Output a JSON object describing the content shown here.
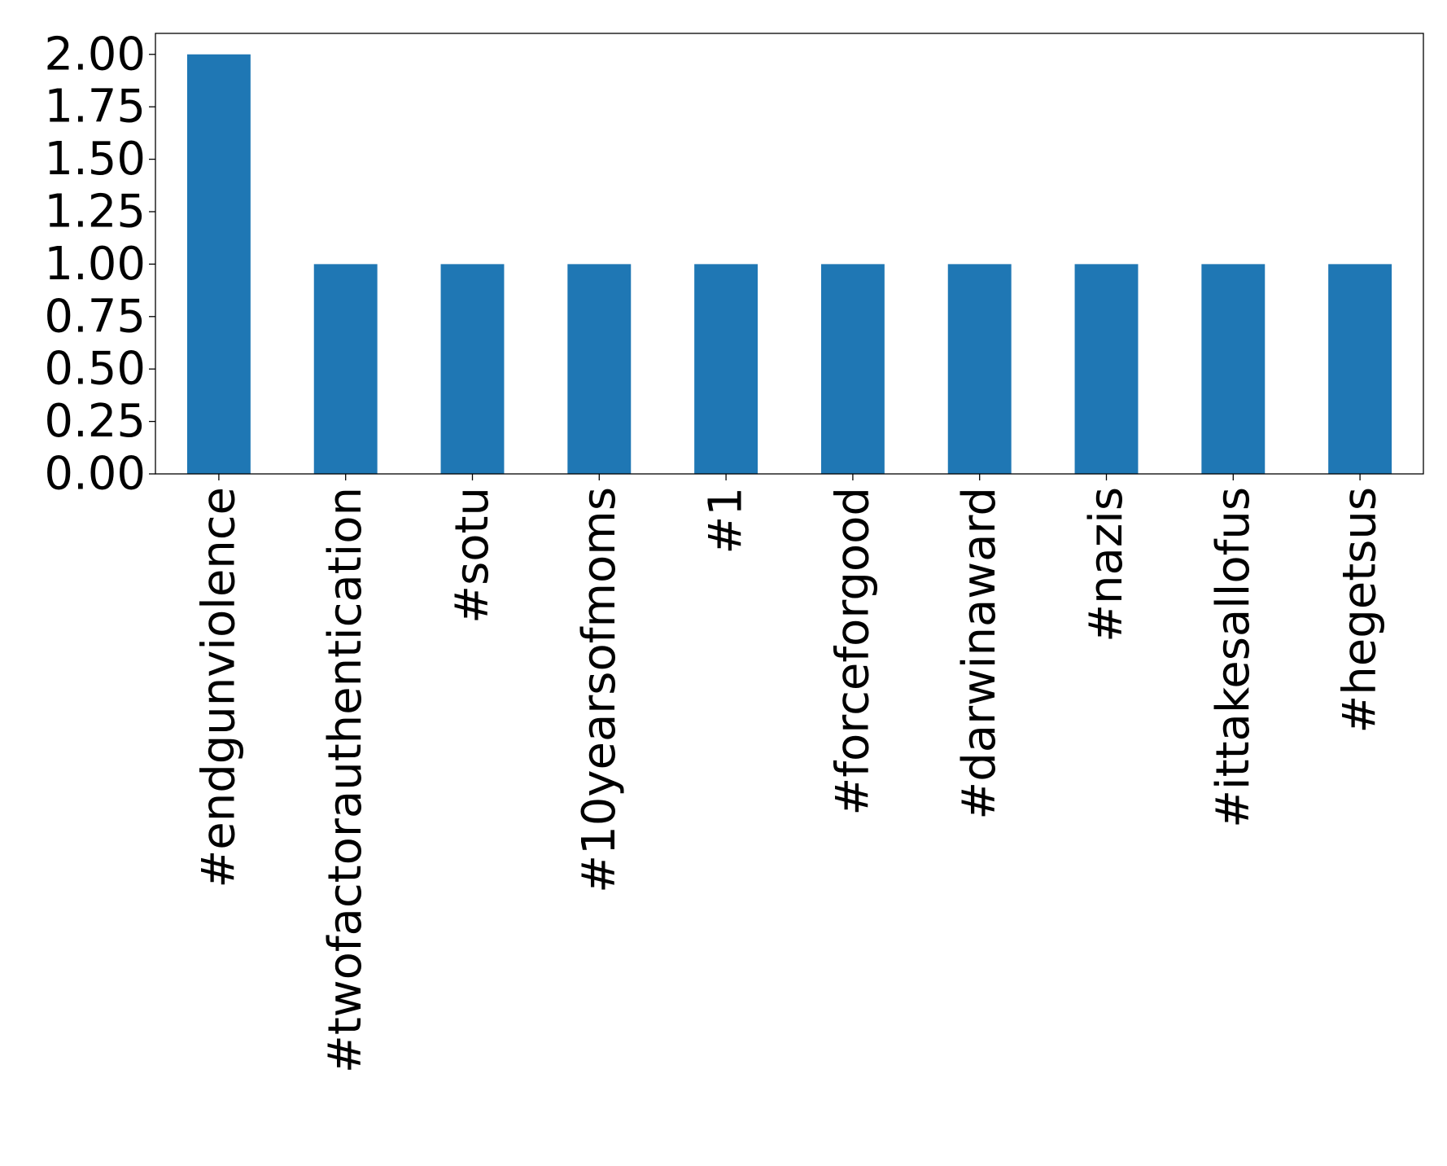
{
  "chart_data": {
    "type": "bar",
    "title": "",
    "xlabel": "",
    "ylabel": "",
    "categories": [
      "#endgunviolence",
      "#twofactorauthentication",
      "#sotu",
      "#10yearsofmoms",
      "#1",
      "#forceforgood",
      "#darwinaward",
      "#nazis",
      "#ittakesallofus",
      "#hegetsus"
    ],
    "values": [
      2,
      1,
      1,
      1,
      1,
      1,
      1,
      1,
      1,
      1
    ],
    "ylim": [
      0,
      2.1
    ],
    "yticks": [
      0.0,
      0.25,
      0.5,
      0.75,
      1.0,
      1.25,
      1.5,
      1.75,
      2.0
    ],
    "ytick_labels": [
      "0.00",
      "0.25",
      "0.50",
      "0.75",
      "1.00",
      "1.25",
      "1.50",
      "1.75",
      "2.00"
    ],
    "bar_color": "#1f77b4",
    "grid": false,
    "legend": "none"
  }
}
